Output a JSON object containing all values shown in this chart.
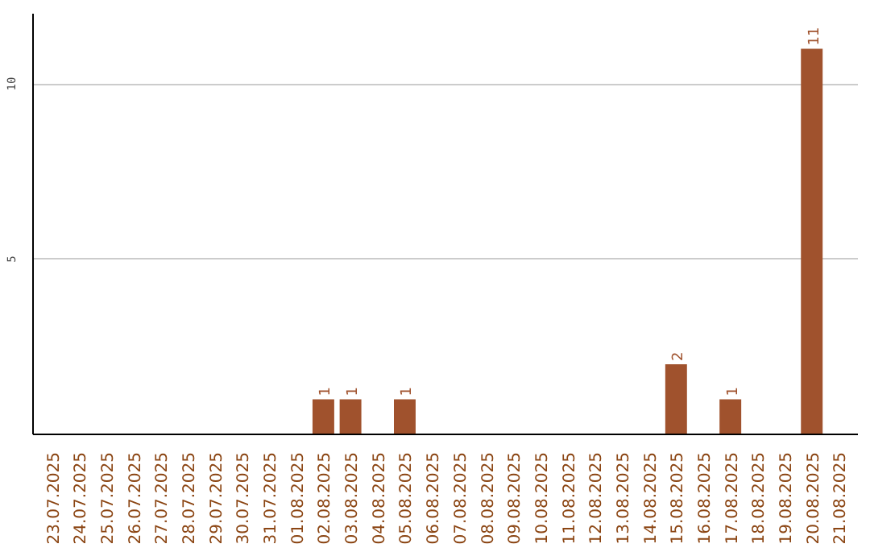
{
  "chart_data": {
    "type": "bar",
    "categories": [
      "23.07.2025",
      "24.07.2025",
      "25.07.2025",
      "26.07.2025",
      "27.07.2025",
      "28.07.2025",
      "29.07.2025",
      "30.07.2025",
      "31.07.2025",
      "01.08.2025",
      "02.08.2025",
      "03.08.2025",
      "04.08.2025",
      "05.08.2025",
      "06.08.2025",
      "07.08.2025",
      "08.08.2025",
      "09.08.2025",
      "10.08.2025",
      "11.08.2025",
      "12.08.2025",
      "13.08.2025",
      "14.08.2025",
      "15.08.2025",
      "16.08.2025",
      "17.08.2025",
      "18.08.2025",
      "19.08.2025",
      "20.08.2025",
      "21.08.2025"
    ],
    "values": [
      0,
      0,
      0,
      0,
      0,
      0,
      0,
      0,
      0,
      0,
      1,
      1,
      0,
      1,
      0,
      0,
      0,
      0,
      0,
      0,
      0,
      0,
      0,
      2,
      0,
      1,
      0,
      0,
      11,
      0
    ],
    "value_labels": [
      null,
      null,
      null,
      null,
      null,
      null,
      null,
      null,
      null,
      null,
      "1",
      "1",
      null,
      "1",
      null,
      null,
      null,
      null,
      null,
      null,
      null,
      null,
      null,
      "2",
      null,
      "1",
      null,
      null,
      "11",
      null
    ],
    "color": "#a0522d",
    "ylim": [
      0,
      12
    ],
    "yticks": [
      5,
      10
    ],
    "grid": "y"
  }
}
